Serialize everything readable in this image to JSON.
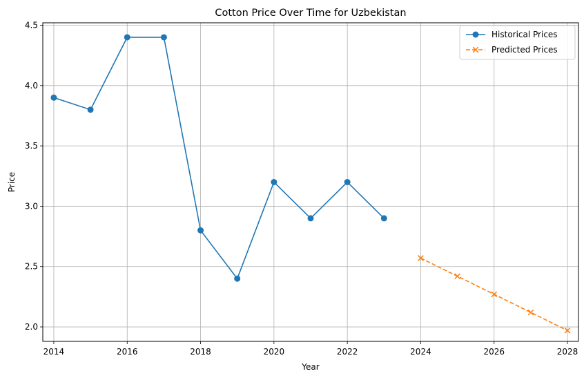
{
  "chart_data": {
    "type": "line",
    "title": "Cotton Price Over Time for Uzbekistan",
    "xlabel": "Year",
    "ylabel": "Price",
    "xlim": [
      2013.7,
      2028.3
    ],
    "ylim": [
      1.88,
      4.52
    ],
    "xticks": [
      2014,
      2016,
      2018,
      2020,
      2022,
      2024,
      2026,
      2028
    ],
    "yticks": [
      2.0,
      2.5,
      3.0,
      3.5,
      4.0,
      4.5
    ],
    "grid": true,
    "legend_position": "top-right",
    "series": [
      {
        "name": "Historical Prices",
        "style": "solid",
        "marker": "circle",
        "color": "#1f77b4",
        "x": [
          2014,
          2015,
          2016,
          2017,
          2018,
          2019,
          2020,
          2021,
          2022,
          2023
        ],
        "y": [
          3.9,
          3.8,
          4.4,
          4.4,
          2.8,
          2.4,
          3.2,
          2.9,
          3.2,
          2.9
        ]
      },
      {
        "name": "Predicted Prices",
        "style": "dashed",
        "marker": "x",
        "color": "#ff7f0e",
        "x": [
          2024,
          2025,
          2026,
          2027,
          2028
        ],
        "y": [
          2.57,
          2.42,
          2.27,
          2.12,
          1.97
        ]
      }
    ]
  }
}
